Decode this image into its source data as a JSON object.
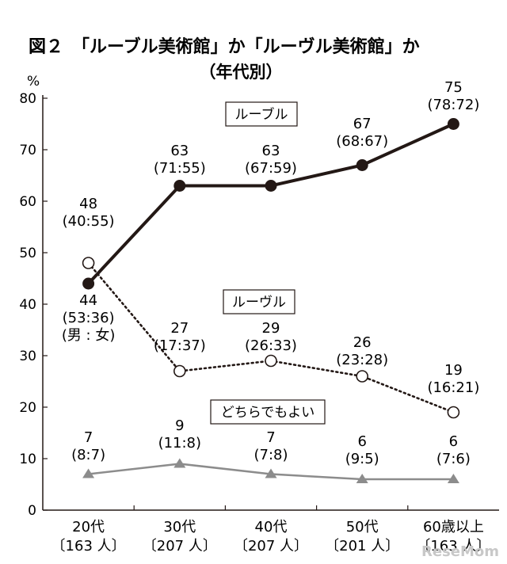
{
  "title": "図２　「ルーブル美術館」か「ルーヴル美術館」か",
  "subtitle": "（年代別）",
  "watermark": "ReseMom",
  "chart_data": {
    "type": "line",
    "title": "図２　「ルーブル美術館」か「ルーヴル美術館」か",
    "subtitle": "（年代別）",
    "ylabel": "%",
    "xlabel": "",
    "ylim": [
      0,
      80
    ],
    "yticks": [
      "0",
      "10",
      "20",
      "30",
      "40",
      "50",
      "60",
      "70",
      "80"
    ],
    "grid": false,
    "categories": [
      {
        "line1": "20代",
        "line2": "〔163 人〕"
      },
      {
        "line1": "30代",
        "line2": "〔207 人〕"
      },
      {
        "line1": "40代",
        "line2": "〔207 人〕"
      },
      {
        "line1": "50代",
        "line2": "〔201 人〕"
      },
      {
        "line1": "60歳以上",
        "line2": "〔163 人〕"
      }
    ],
    "series": [
      {
        "name": "ルーブル",
        "color": "#231815",
        "style": "solid-filled-circle",
        "values": [
          44,
          63,
          63,
          67,
          75
        ],
        "labels": [
          [
            "44",
            "(53:36)",
            "(男 : 女)"
          ],
          [
            "63",
            "(71:55)"
          ],
          [
            "63",
            "(67:59)"
          ],
          [
            "67",
            "(68:67)"
          ],
          [
            "75",
            "(78:72)"
          ]
        ]
      },
      {
        "name": "ルーヴル",
        "color": "#231815",
        "style": "dotted-open-circle",
        "values": [
          48,
          27,
          29,
          26,
          19
        ],
        "labels": [
          [
            "48",
            "(40:55)"
          ],
          [
            "27",
            "(17:37)"
          ],
          [
            "29",
            "(26:33)"
          ],
          [
            "26",
            "(23:28)"
          ],
          [
            "19",
            "(16:21)"
          ]
        ]
      },
      {
        "name": "どちらでもよい",
        "color": "#8c8c8c",
        "style": "solid-triangle",
        "values": [
          7,
          9,
          7,
          6,
          6
        ],
        "labels": [
          [
            "7",
            "(8:7)"
          ],
          [
            "9",
            "(11:8)"
          ],
          [
            "7",
            "(7:8)"
          ],
          [
            "6",
            "(9:5)"
          ],
          [
            "6",
            "(7:6)"
          ]
        ]
      }
    ]
  }
}
